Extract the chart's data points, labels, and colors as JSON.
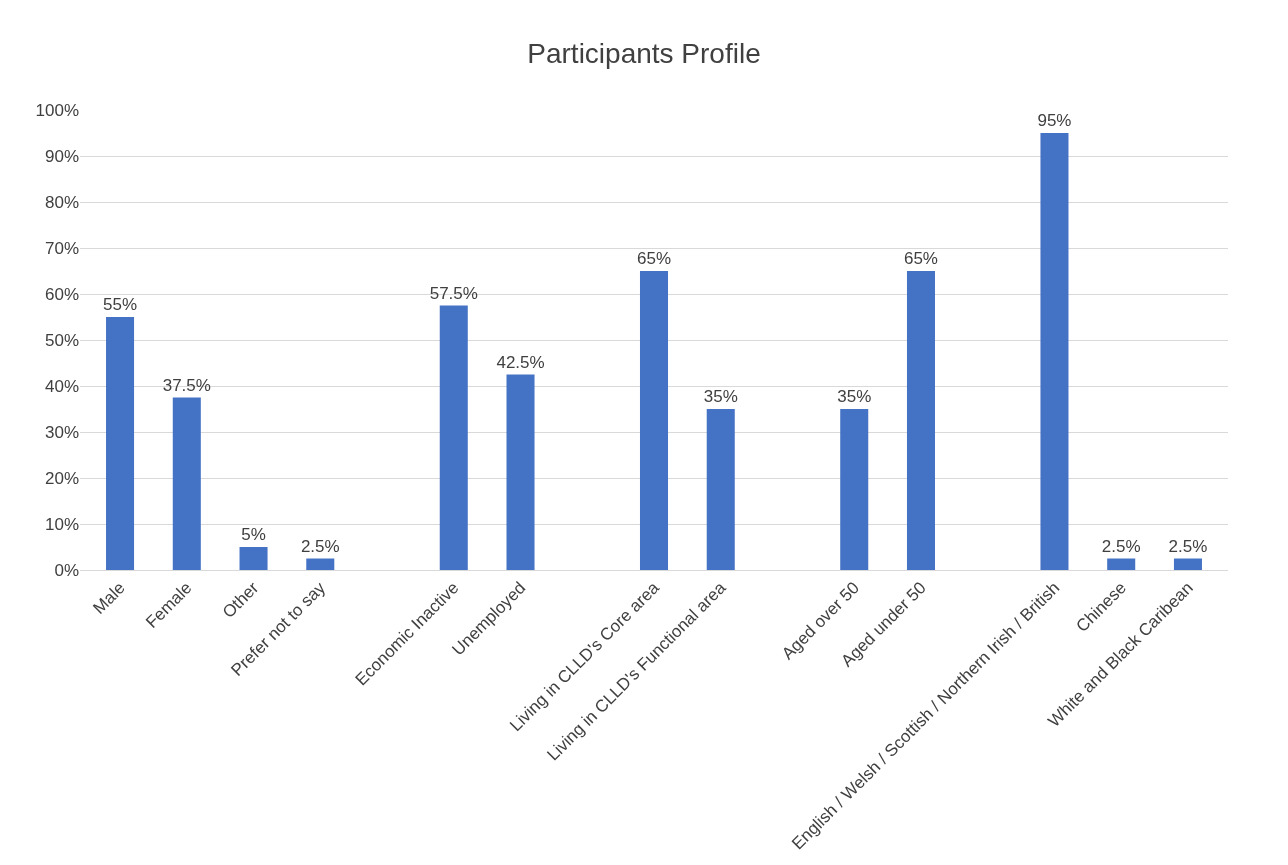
{
  "chart_data": {
    "type": "bar",
    "title": "Participants Profile",
    "categories": [
      "Male",
      "Female",
      "Other",
      "Prefer not to say",
      null,
      "Economic Inactive",
      "Unemployed",
      null,
      "Living in CLLD's Core area",
      "Living in CLLD's Functional area",
      null,
      "Aged over 50",
      "Aged under 50",
      null,
      "English / Welsh / Scottish / Northern Irish / British",
      "Chinese",
      "White and Black Caribean"
    ],
    "values": [
      55,
      37.5,
      5,
      2.5,
      null,
      57.5,
      42.5,
      null,
      65,
      35,
      null,
      35,
      65,
      null,
      95,
      2.5,
      2.5
    ],
    "value_labels": [
      "55%",
      "37.5%",
      "5%",
      "2.5%",
      null,
      "57.5%",
      "42.5%",
      null,
      "65%",
      "35%",
      null,
      "35%",
      "65%",
      null,
      "95%",
      "2.5%",
      "2.5%"
    ],
    "color": "#4472c4",
    "ylim": [
      0,
      100
    ],
    "yticks": [
      {
        "value": 0,
        "label": "0%"
      },
      {
        "value": 10,
        "label": "10%"
      },
      {
        "value": 20,
        "label": "20%"
      },
      {
        "value": 30,
        "label": "30%"
      },
      {
        "value": 40,
        "label": "40%"
      },
      {
        "value": 50,
        "label": "50%"
      },
      {
        "value": 60,
        "label": "60%"
      },
      {
        "value": 70,
        "label": "70%"
      },
      {
        "value": 80,
        "label": "80%"
      },
      {
        "value": 90,
        "label": "90%"
      },
      {
        "value": 100,
        "label": "100%"
      }
    ],
    "grid": "y"
  }
}
